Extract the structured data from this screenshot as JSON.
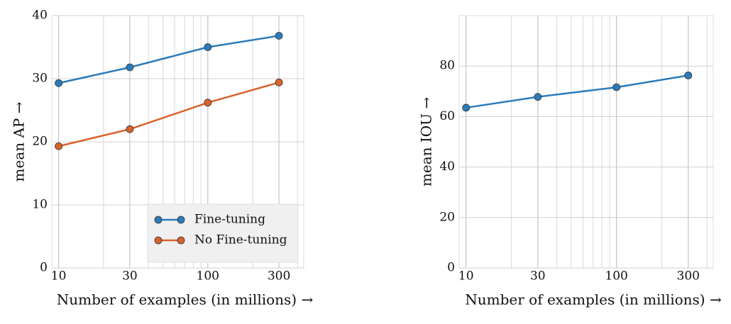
{
  "chart_data": [
    {
      "type": "line",
      "x_label": "Number of examples (in millions) →",
      "y_label": "mean AP →",
      "x": [
        10,
        30,
        100,
        300
      ],
      "xlim": [
        9,
        440
      ],
      "xticks": [
        10,
        30,
        100,
        300
      ],
      "x_log": true,
      "ylim": [
        0,
        40
      ],
      "yticks": [
        0,
        10,
        20,
        30,
        40
      ],
      "grid": true,
      "minor_grid_step": 10,
      "legend": "lower right",
      "series": [
        {
          "name": "Fine-tuning",
          "color": "#2b7bba",
          "values": [
            29.3,
            31.8,
            35.0,
            36.8
          ]
        },
        {
          "name": "No Fine-tuning",
          "color": "#d8612c",
          "values": [
            19.3,
            22.0,
            26.2,
            29.4
          ]
        }
      ]
    },
    {
      "type": "line",
      "x_label": "Number of examples (in millions) →",
      "y_label": "mean IOU →",
      "x": [
        10,
        30,
        100,
        300
      ],
      "xlim": [
        9,
        440
      ],
      "xticks": [
        10,
        30,
        100,
        300
      ],
      "x_log": true,
      "ylim": [
        0,
        100
      ],
      "yticks": [
        0,
        20,
        40,
        60,
        80
      ],
      "grid": true,
      "minor_grid_step": 10,
      "series": [
        {
          "name": null,
          "color": "#2b7bba",
          "values": [
            63.5,
            67.8,
            71.6,
            76.3
          ]
        }
      ]
    }
  ]
}
